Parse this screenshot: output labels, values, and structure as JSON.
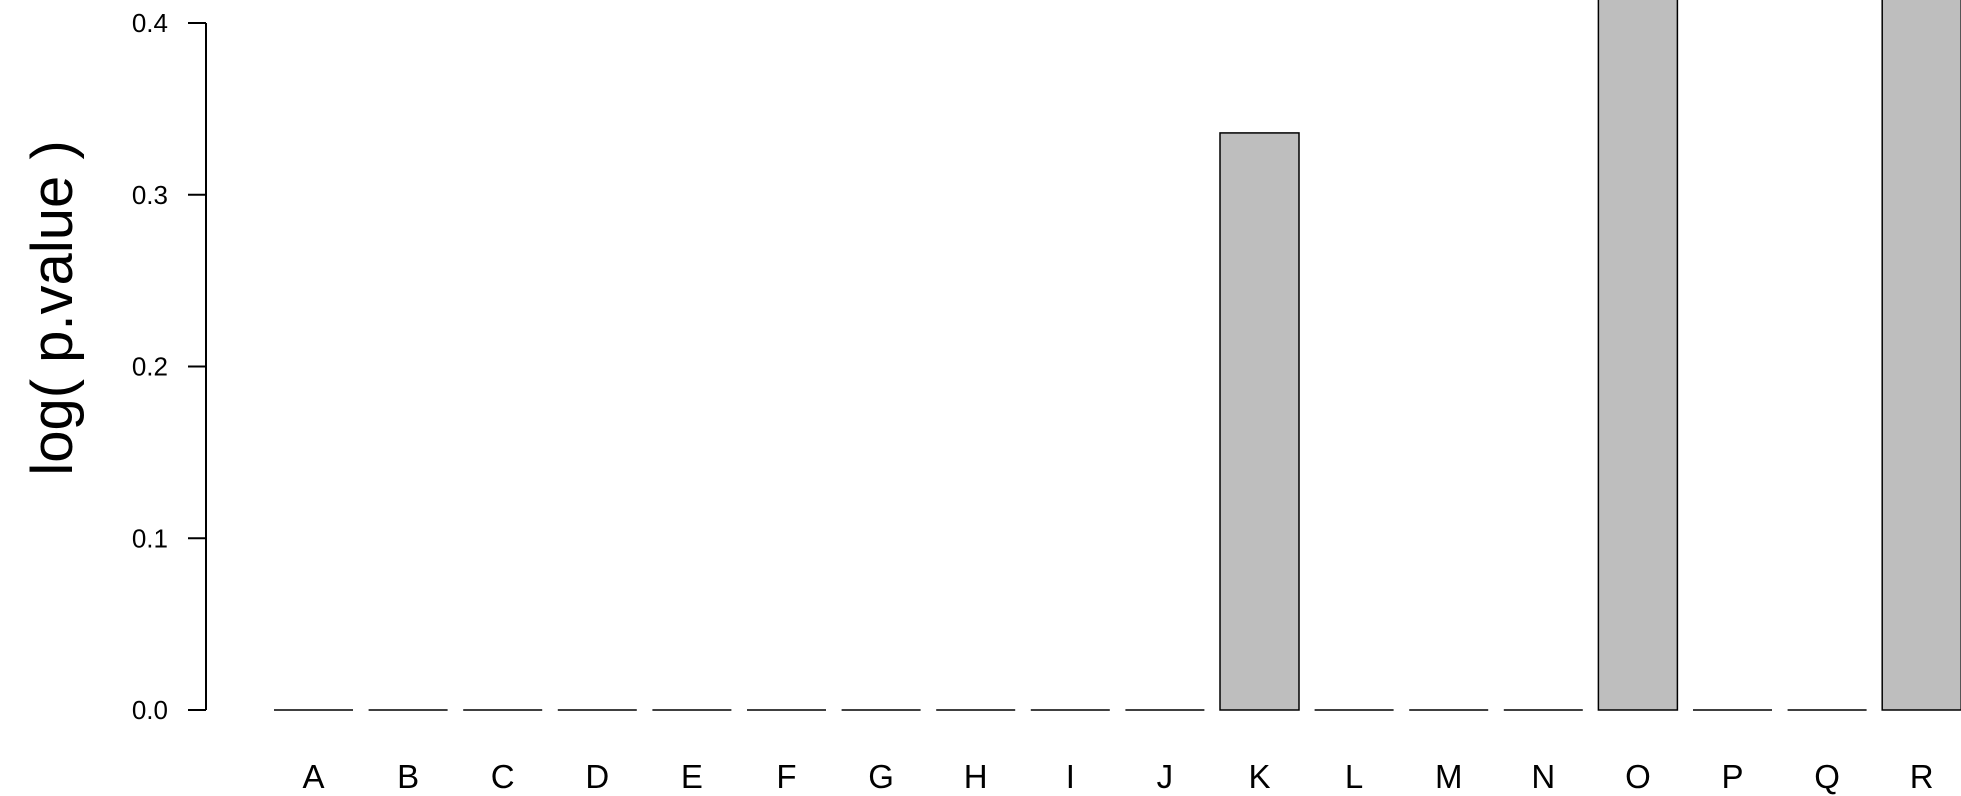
{
  "chart_data": {
    "type": "bar",
    "ylabel": "log( p.value )",
    "xlabel": "",
    "ylim": [
      0,
      0.4
    ],
    "yticks": [
      0.0,
      0.1,
      0.2,
      0.3,
      0.4
    ],
    "ytick_labels": [
      "0.0",
      "0.1",
      "0.2",
      "0.3",
      "0.4"
    ],
    "categories": [
      "A",
      "B",
      "C",
      "D",
      "E",
      "F",
      "G",
      "H",
      "I",
      "J",
      "K",
      "L",
      "M",
      "N",
      "O",
      "P",
      "Q",
      "R"
    ],
    "values": [
      0,
      0,
      0,
      0,
      0,
      0,
      0,
      0,
      0,
      0,
      0.336,
      0,
      0,
      0,
      0.42,
      0,
      0,
      0.42
    ],
    "bar_color": "#bebebe",
    "bar_edge_color": "#000000",
    "grid": false,
    "legend": "none"
  }
}
